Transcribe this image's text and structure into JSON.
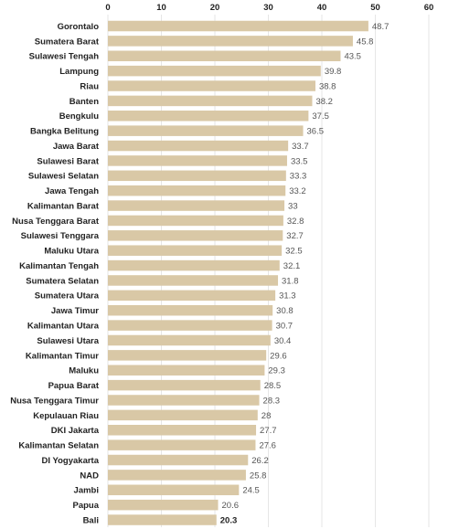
{
  "chart_data": {
    "type": "bar",
    "orientation": "horizontal",
    "xlim": [
      0,
      60
    ],
    "ticks": [
      0,
      10,
      20,
      30,
      40,
      50,
      60
    ],
    "axis_position": "top",
    "grid": true,
    "bar_color": "#d9c8a6",
    "grid_color": "#e6e6e6",
    "categories": [
      "Gorontalo",
      "Sumatera Barat",
      "Sulawesi Tengah",
      "Lampung",
      "Riau",
      "Banten",
      "Bengkulu",
      "Bangka Belitung",
      "Jawa Barat",
      "Sulawesi Barat",
      "Sulawesi Selatan",
      "Jawa Tengah",
      "Kalimantan Barat",
      "Nusa Tenggara Barat",
      "Sulawesi Tenggara",
      "Maluku Utara",
      "Kalimantan Tengah",
      "Sumatera Selatan",
      "Sumatera Utara",
      "Jawa Timur",
      "Kalimantan Utara",
      "Sulawesi Utara",
      "Kalimantan Timur",
      "Maluku",
      "Papua Barat",
      "Nusa Tenggara Timur",
      "Kepulauan Riau",
      "DKI Jakarta",
      "Kalimantan Selatan",
      "DI Yogyakarta",
      "NAD",
      "Jambi",
      "Papua",
      "Bali"
    ],
    "values": [
      48.7,
      45.8,
      43.5,
      39.8,
      38.8,
      38.2,
      37.5,
      36.5,
      33.7,
      33.5,
      33.3,
      33.2,
      33,
      32.8,
      32.7,
      32.5,
      32.1,
      31.8,
      31.3,
      30.8,
      30.7,
      30.4,
      29.6,
      29.3,
      28.5,
      28.3,
      28,
      27.7,
      27.6,
      26.2,
      25.8,
      24.5,
      20.6,
      20.3
    ],
    "value_labels": [
      "48.7",
      "45.8",
      "43.5",
      "39.8",
      "38.8",
      "38.2",
      "37.5",
      "36.5",
      "33.7",
      "33.5",
      "33.3",
      "33.2",
      "33",
      "32.8",
      "32.7",
      "32.5",
      "32.1",
      "31.8",
      "31.3",
      "30.8",
      "30.7",
      "30.4",
      "29.6",
      "29.3",
      "28.5",
      "28.3",
      "28",
      "27.7",
      "27.6",
      "26.2",
      "25.8",
      "24.5",
      "20.6",
      "20.3"
    ],
    "highlight_category": "Bali"
  }
}
